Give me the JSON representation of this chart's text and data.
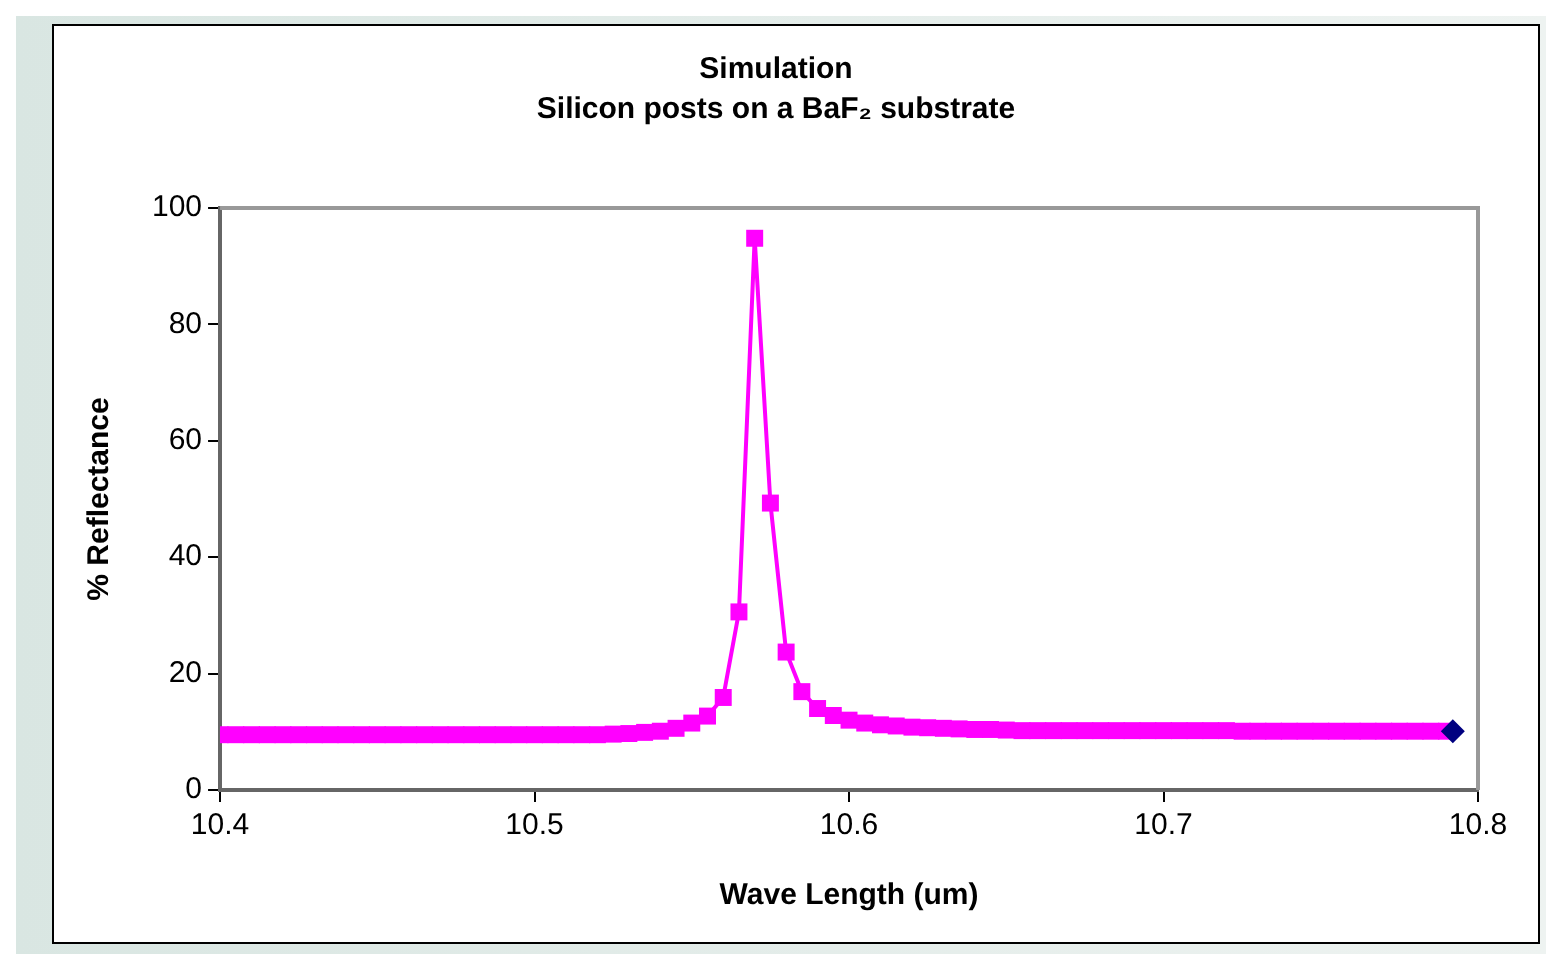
{
  "chart_data": {
    "type": "line",
    "title": "Simulation",
    "subtitle": "Silicon posts on a BaF₂ substrate",
    "xlabel": "Wave Length (um)",
    "ylabel": "% Reflectance",
    "xlim": [
      10.4,
      10.8
    ],
    "xticks": [
      10.4,
      10.5,
      10.6,
      10.7,
      10.8
    ],
    "ylim": [
      0,
      100
    ],
    "yticks": [
      0,
      20,
      40,
      60,
      80,
      100
    ],
    "grid": false,
    "legend": false,
    "marker": "square",
    "series": [
      {
        "color": "#ff00ff",
        "x": [
          10.4,
          10.405,
          10.41,
          10.415,
          10.42,
          10.425,
          10.43,
          10.435,
          10.44,
          10.445,
          10.45,
          10.455,
          10.46,
          10.465,
          10.47,
          10.475,
          10.48,
          10.485,
          10.49,
          10.495,
          10.5,
          10.505,
          10.51,
          10.515,
          10.52,
          10.525,
          10.53,
          10.535,
          10.54,
          10.545,
          10.55,
          10.555,
          10.56,
          10.565,
          10.57,
          10.575,
          10.58,
          10.585,
          10.59,
          10.595,
          10.6,
          10.605,
          10.61,
          10.615,
          10.62,
          10.625,
          10.63,
          10.635,
          10.64,
          10.645,
          10.65,
          10.655,
          10.66,
          10.665,
          10.67,
          10.675,
          10.68,
          10.685,
          10.69,
          10.695,
          10.7,
          10.705,
          10.71,
          10.715,
          10.72,
          10.725,
          10.73,
          10.735,
          10.74,
          10.745,
          10.75,
          10.755,
          10.76,
          10.765,
          10.77,
          10.775,
          10.78,
          10.785,
          10.79
        ],
        "values": [
          9.5,
          9.5,
          9.5,
          9.5,
          9.5,
          9.5,
          9.5,
          9.5,
          9.5,
          9.5,
          9.5,
          9.5,
          9.5,
          9.5,
          9.5,
          9.5,
          9.5,
          9.5,
          9.5,
          9.5,
          9.5,
          9.5,
          9.5,
          9.5,
          9.5,
          9.6,
          9.7,
          9.9,
          10.1,
          10.6,
          11.5,
          12.7,
          15.9,
          30.6,
          94.8,
          49.3,
          23.7,
          16.9,
          14,
          12.8,
          12,
          11.5,
          11.2,
          11,
          10.8,
          10.7,
          10.6,
          10.5,
          10.4,
          10.4,
          10.3,
          10.2,
          10.2,
          10.2,
          10.2,
          10.2,
          10.2,
          10.2,
          10.2,
          10.2,
          10.2,
          10.2,
          10.2,
          10.2,
          10.2,
          10.1,
          10.1,
          10.1,
          10.1,
          10.1,
          10.1,
          10.1,
          10.1,
          10.1,
          10.1,
          10.1,
          10.1,
          10.1,
          10.1
        ]
      },
      {
        "color": "#000080",
        "marker": "diamond",
        "x": [
          10.792
        ],
        "values": [
          10.1
        ]
      }
    ]
  }
}
